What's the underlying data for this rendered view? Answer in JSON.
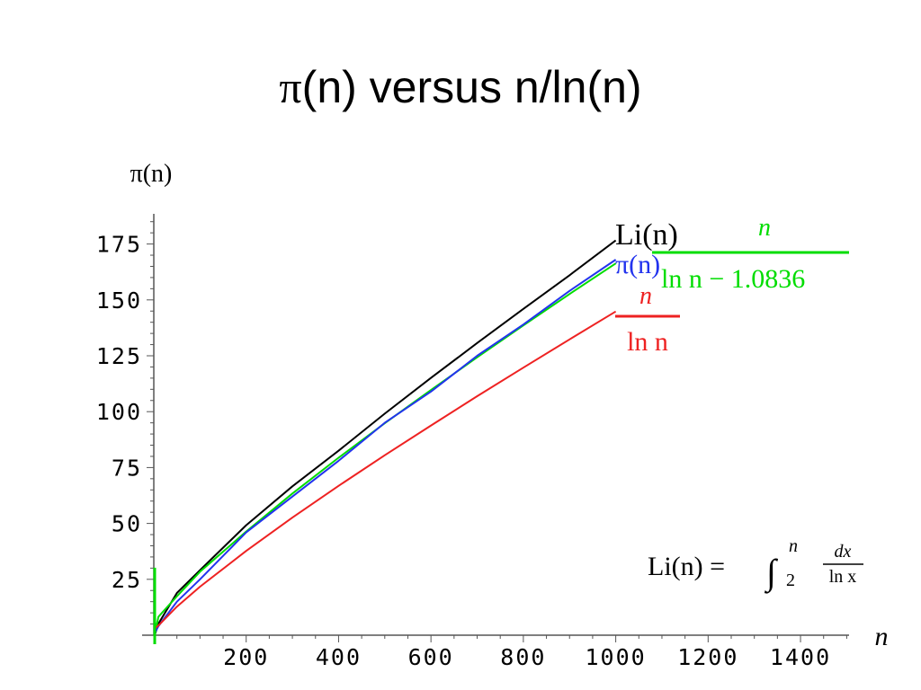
{
  "title": "π(n) versus n/ln(n)",
  "title_parts": {
    "symbol": "π",
    "rest": "(n) versus n/ln(n)"
  },
  "chart_data": {
    "type": "line",
    "xlabel": "n",
    "ylabel": "π(n)",
    "xlim": [
      0,
      1500
    ],
    "ylim": [
      0,
      185
    ],
    "x_ticks": [
      200,
      400,
      600,
      800,
      1000,
      1200,
      1400
    ],
    "y_ticks": [
      25,
      50,
      75,
      100,
      125,
      150,
      175
    ],
    "grid": false,
    "series": [
      {
        "name": "Li(n)",
        "color": "#000000",
        "x": [
          2,
          10,
          50,
          100,
          200,
          300,
          400,
          500,
          600,
          700,
          800,
          900,
          1000
        ],
        "y": [
          0,
          5.1,
          18.9,
          29.1,
          49.2,
          66.6,
          82.5,
          99.1,
          115.1,
          130.7,
          146.0,
          161.0,
          176.6
        ]
      },
      {
        "name": "n / (ln n − 1.0836)",
        "color": "#00dd00",
        "x": [
          2,
          10,
          50,
          100,
          200,
          300,
          400,
          500,
          600,
          700,
          800,
          900,
          1000
        ],
        "y": [
          0,
          8.2,
          17.4,
          28.4,
          46.4,
          63.4,
          79.4,
          94.8,
          109.7,
          124.3,
          138.6,
          152.6,
          166.3
        ]
      },
      {
        "name": "π(n)",
        "color": "#2233ee",
        "x": [
          2,
          10,
          50,
          100,
          200,
          300,
          400,
          500,
          600,
          700,
          800,
          900,
          1000
        ],
        "y": [
          1,
          4,
          15,
          25,
          46,
          62,
          78,
          95,
          109,
          125,
          139,
          154,
          168
        ]
      },
      {
        "name": "n / ln n",
        "color": "#ee2222",
        "x": [
          2,
          10,
          50,
          100,
          200,
          300,
          400,
          500,
          600,
          700,
          800,
          900,
          1000
        ],
        "y": [
          2.9,
          4.3,
          12.8,
          21.7,
          37.7,
          52.6,
          66.8,
          80.5,
          93.8,
          106.9,
          119.7,
          132.3,
          144.8
        ]
      }
    ],
    "labels": {
      "li": "Li(n)",
      "green_num": "n",
      "green_den": "ln n − 1.0836",
      "pi": "π(n)",
      "red_num": "n",
      "red_den": "ln n"
    },
    "annotation": {
      "lhs": "Li(n) =",
      "integral": "∫",
      "upper": "n",
      "lower": "2",
      "num": "dx",
      "den": "ln x"
    }
  }
}
